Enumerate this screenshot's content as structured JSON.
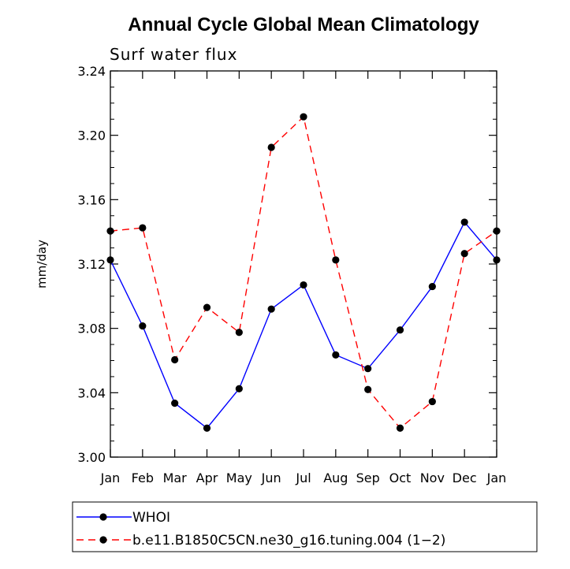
{
  "chart_data": {
    "type": "line",
    "title": "Annual Cycle Global Mean Climatology",
    "subtitle": "Surf water flux",
    "xlabel": "",
    "ylabel": "mm/day",
    "categories": [
      "Jan",
      "Feb",
      "Mar",
      "Apr",
      "May",
      "Jun",
      "Jul",
      "Aug",
      "Sep",
      "Oct",
      "Nov",
      "Dec",
      "Jan"
    ],
    "ylim": [
      3.0,
      3.24
    ],
    "yticks": [
      3.0,
      3.04,
      3.08,
      3.12,
      3.16,
      3.2,
      3.24
    ],
    "ytick_labels": [
      "3.00",
      "3.04",
      "3.08",
      "3.12",
      "3.16",
      "3.20",
      "3.24"
    ],
    "series": [
      {
        "name": "WHOI",
        "color": "#0000ff",
        "dash": "solid",
        "values": [
          3.1225,
          3.0815,
          3.0335,
          3.018,
          3.0425,
          3.092,
          3.107,
          3.0635,
          3.055,
          3.079,
          3.106,
          3.146,
          3.1225
        ]
      },
      {
        "name": "b.e11.B1850C5CN.ne30_g16.tuning.004 (1−2)",
        "color": "#ff0000",
        "dash": "dashed",
        "values": [
          3.1405,
          3.1425,
          3.0605,
          3.093,
          3.0775,
          3.1925,
          3.2115,
          3.1225,
          3.042,
          3.018,
          3.0345,
          3.1265,
          3.1405
        ]
      }
    ],
    "legend_position": "bottom"
  }
}
